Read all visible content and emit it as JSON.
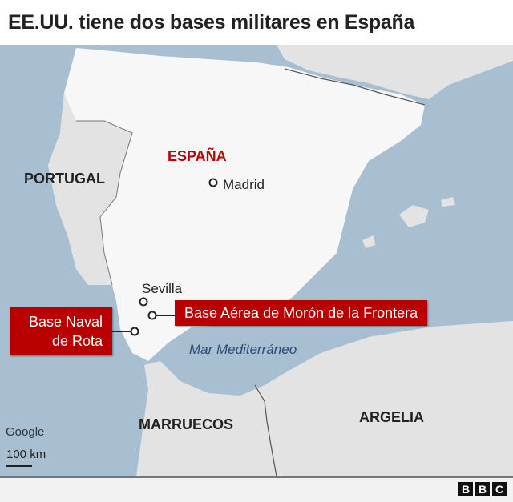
{
  "title": "EE.UU. tiene dos bases militares en España",
  "colors": {
    "sea": "#a8bfd1",
    "land_spain": "#f7f7f7",
    "land_other": "#e3e3e3",
    "label_red": "#b80000",
    "highlight_text": "#b80000",
    "sea_text": "#2a4a7a"
  },
  "map": {
    "countries": {
      "spain": "ESPAÑA",
      "portugal": "PORTUGAL",
      "morocco": "MARRUECOS",
      "algeria": "ARGELIA"
    },
    "cities": {
      "madrid": "Madrid",
      "sevilla": "Sevilla"
    },
    "sea": "Mar Mediterráneo",
    "bases": {
      "rota": [
        "Base Naval",
        "de Rota"
      ],
      "moron": "Base Aérea de Morón de la Frontera"
    },
    "attribution": "Google",
    "scale": "100 km"
  },
  "footer": {
    "logo": "BBC",
    "logo_letters": [
      "B",
      "B",
      "C"
    ]
  }
}
